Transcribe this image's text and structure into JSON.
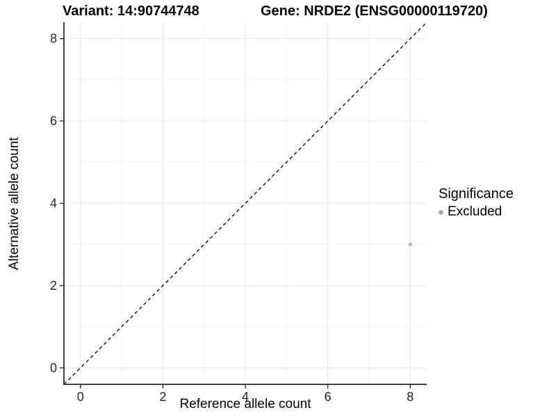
{
  "titles": {
    "left": "Variant: 14:90744748",
    "right": "Gene: NRDE2 (ENSG00000119720)"
  },
  "chart_data": {
    "type": "scatter",
    "title": "Variant: 14:90744748   Gene: NRDE2 (ENSG00000119720)",
    "xlabel": "Reference allele count",
    "ylabel": "Alternative allele count",
    "xlim": [
      -0.4,
      8.4
    ],
    "ylim": [
      -0.4,
      8.4
    ],
    "xticks": [
      0,
      2,
      4,
      6,
      8
    ],
    "yticks": [
      0,
      2,
      4,
      6,
      8
    ],
    "minor_gridlines_x": [
      1,
      3,
      5,
      7
    ],
    "minor_gridlines_y": [
      1,
      3,
      5,
      7
    ],
    "grid": "major-and-minor",
    "identity_line": {
      "style": "dashed",
      "slope": 1,
      "intercept": 0,
      "color": "#000000"
    },
    "series": [
      {
        "name": "Excluded",
        "color": "#b3b3b3",
        "points": [
          {
            "x": 8,
            "y": 3
          }
        ]
      }
    ],
    "legend": {
      "title": "Significance",
      "position": "right",
      "items": [
        {
          "label": "Excluded",
          "color": "#ababab"
        }
      ]
    }
  },
  "colors": {
    "background": "#ffffff",
    "axis_line": "#404040",
    "tick_mark": "#333333",
    "tick_label": "#262626",
    "grid_major": "#e7e7e7",
    "grid_minor": "#f3f3f3",
    "point": "#b3b3b3"
  }
}
